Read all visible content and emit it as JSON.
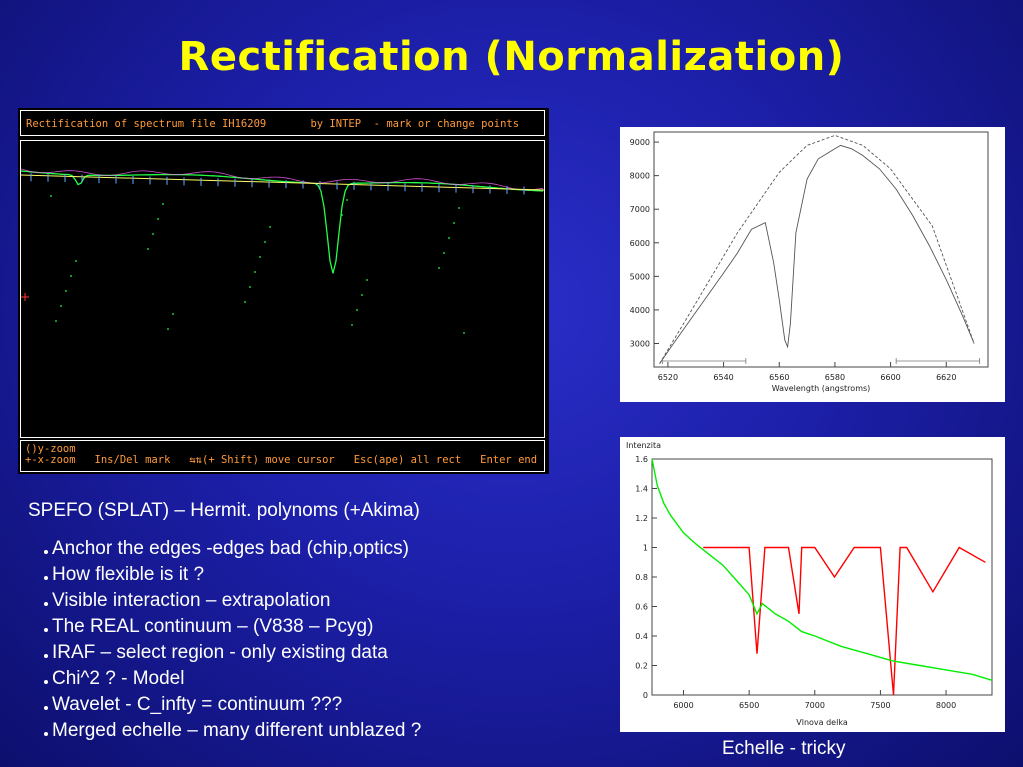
{
  "slide": {
    "title": "Rectification (Normalization)",
    "subtitle": "SPEFO (SPLAT)  – Hermit.  polynoms (+Akima)",
    "bullets": [
      "Anchor the edges -edges bad (chip,optics)",
      "How flexible is it ?",
      "Visible interaction – extrapolation",
      "The REAL continuum – (V838 – Pcyg)",
      "IRAF – select region - only existing data",
      "Chi^2  ? - Model",
      "Wavelet  - C_infty = continuum ???",
      "Merged echelle – many different unblazed ?"
    ],
    "caption": "Echelle  - tricky"
  },
  "spefo": {
    "header": "Rectification of spectrum file IH16209       by INTEP  - mark or change points",
    "footer_line1": "()y-zoom",
    "footer_line2": "+-x-zoom   Ins/Del mark   ⇆⇅(+ Shift) move cursor   Esc(ape) all rect   Enter end",
    "colors": {
      "header_text": "#ff9a3a",
      "spectrum": "#22ff44",
      "continuum": "#ffff66"
    }
  },
  "chart_data": [
    {
      "type": "line",
      "xlabel": "Wavelength (angstroms)",
      "ylabel": "",
      "xlim": [
        6515,
        6635
      ],
      "ylim": [
        2300,
        9300
      ],
      "x_ticks": [
        6520,
        6540,
        6560,
        6580,
        6600,
        6620
      ],
      "y_ticks": [
        3000,
        4000,
        5000,
        6000,
        7000,
        8000,
        9000
      ],
      "series": [
        {
          "style": "solid",
          "x": [
            6517,
            6522,
            6528,
            6534,
            6540,
            6545,
            6550,
            6555,
            6558,
            6560,
            6562,
            6563,
            6564,
            6566,
            6570,
            6574,
            6578,
            6582,
            6586,
            6590,
            6596,
            6602,
            6608,
            6614,
            6620,
            6626,
            6630
          ],
          "y": [
            2400,
            3000,
            3700,
            4400,
            5100,
            5700,
            6400,
            6600,
            5400,
            4300,
            3100,
            2900,
            3600,
            6300,
            7900,
            8500,
            8700,
            8900,
            8800,
            8600,
            8200,
            7600,
            6800,
            5900,
            4900,
            3800,
            3000
          ]
        },
        {
          "style": "dashed",
          "x": [
            6517,
            6530,
            6545,
            6560,
            6570,
            6580,
            6590,
            6600,
            6615,
            6630
          ],
          "y": [
            2400,
            4200,
            6300,
            8100,
            8900,
            9200,
            8900,
            8200,
            6500,
            3000
          ]
        }
      ],
      "regions": [
        [
          6518,
          6548
        ],
        [
          6602,
          6632
        ]
      ]
    },
    {
      "type": "line",
      "ylabel": "Intenzita",
      "xlabel": "Vlnova delka",
      "xlim": [
        5760,
        8350
      ],
      "ylim": [
        0,
        1.6
      ],
      "x_ticks": [
        6000,
        6500,
        7000,
        7500,
        8000
      ],
      "y_ticks": [
        0,
        0.2,
        0.4,
        0.6,
        0.8,
        1,
        1.2,
        1.4,
        1.6
      ],
      "series": [
        {
          "color": "#ff0000",
          "x": [
            6150,
            6300,
            6500,
            6560,
            6620,
            6800,
            6880,
            6900,
            7000,
            7150,
            7300,
            7500,
            7590,
            7600,
            7650,
            7700,
            7900,
            8100,
            8300
          ],
          "y": [
            1.0,
            1.0,
            1.0,
            0.28,
            1.0,
            1.0,
            0.55,
            1.0,
            1.0,
            0.8,
            1.0,
            1.0,
            0.1,
            0.0,
            1.0,
            1.0,
            0.7,
            1.0,
            0.9
          ]
        },
        {
          "color": "#00ee00",
          "x": [
            5760,
            5800,
            5850,
            5900,
            6000,
            6100,
            6200,
            6300,
            6400,
            6500,
            6560,
            6600,
            6700,
            6800,
            6900,
            7000,
            7200,
            7400,
            7600,
            7800,
            8000,
            8200,
            8350
          ],
          "y": [
            1.6,
            1.42,
            1.3,
            1.22,
            1.1,
            1.02,
            0.95,
            0.88,
            0.78,
            0.68,
            0.55,
            0.62,
            0.55,
            0.5,
            0.43,
            0.4,
            0.33,
            0.28,
            0.23,
            0.2,
            0.17,
            0.14,
            0.1
          ]
        }
      ]
    }
  ]
}
